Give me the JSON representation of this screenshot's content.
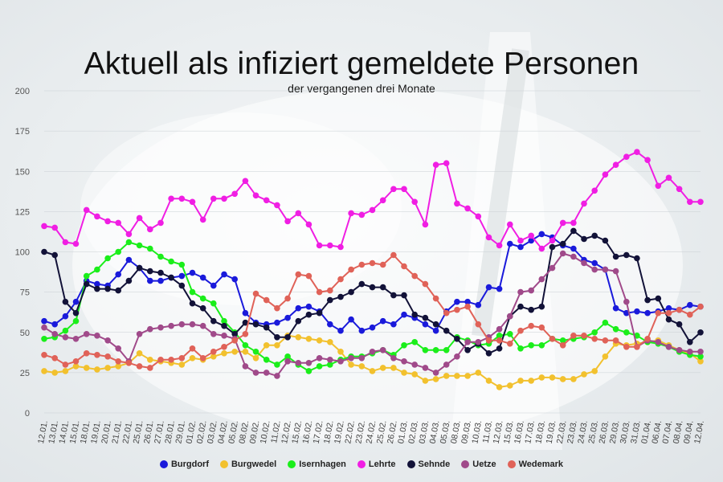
{
  "chart_data": {
    "type": "line",
    "title": "Aktuell als infiziert gemeldete Personen",
    "subtitle": "der vergangenen drei Monate",
    "xlabel": "",
    "ylabel": "",
    "ylim": [
      0,
      200
    ],
    "yticks": [
      0,
      25,
      50,
      75,
      100,
      125,
      150,
      175,
      200
    ],
    "grid": true,
    "legend_position": "bottom",
    "categories": [
      "12.01.",
      "13.01.",
      "14.01.",
      "15.01.",
      "18.01.",
      "19.01.",
      "20.01.",
      "21.01.",
      "22.01.",
      "25.01.",
      "26.01.",
      "27.01.",
      "28.01.",
      "29.01.",
      "01.02.",
      "02.02.",
      "03.02.",
      "04.02.",
      "05.02.",
      "08.02.",
      "09.02.",
      "10.02.",
      "11.02.",
      "12.02.",
      "15.02.",
      "16.02.",
      "17.02.",
      "18.02.",
      "19.02.",
      "22.02.",
      "23.02.",
      "24.02.",
      "25.02.",
      "26.02.",
      "01.03.",
      "02.03.",
      "03.03.",
      "04.03.",
      "05.03.",
      "08.03.",
      "09.03.",
      "10.03.",
      "11.03.",
      "12.03.",
      "15.03.",
      "16.03.",
      "17.03.",
      "18.03.",
      "19.03.",
      "22.03.",
      "23.03.",
      "24.03.",
      "25.03.",
      "26.03.",
      "29.03.",
      "30.03.",
      "31.03.",
      "01.04.",
      "06.04.",
      "07.04.",
      "08.04.",
      "09.04.",
      "12.04."
    ],
    "series": [
      {
        "name": "Burgdorf",
        "color": "#1a1adb",
        "values": [
          57,
          55,
          60,
          69,
          82,
          80,
          79,
          86,
          95,
          90,
          82,
          82,
          84,
          85,
          87,
          84,
          79,
          86,
          83,
          62,
          56,
          55,
          56,
          59,
          65,
          66,
          63,
          55,
          51,
          58,
          51,
          53,
          57,
          55,
          61,
          59,
          55,
          51,
          63,
          69,
          69,
          67,
          78,
          77,
          105,
          103,
          107,
          111,
          109,
          104,
          102,
          95,
          93,
          89,
          65,
          62,
          63,
          62,
          63,
          65,
          64,
          67,
          66
        ]
      },
      {
        "name": "Burgwedel",
        "color": "#f2c12e",
        "values": [
          26,
          25,
          26,
          29,
          28,
          27,
          28,
          29,
          31,
          37,
          33,
          32,
          31,
          30,
          34,
          33,
          35,
          37,
          38,
          38,
          34,
          42,
          42,
          48,
          47,
          46,
          45,
          44,
          38,
          30,
          29,
          26,
          28,
          28,
          25,
          24,
          20,
          21,
          23,
          23,
          23,
          25,
          20,
          16,
          17,
          20,
          20,
          22,
          22,
          21,
          21,
          24,
          26,
          35,
          43,
          42,
          43,
          44,
          45,
          42,
          39,
          37,
          32
        ]
      },
      {
        "name": "Isernhagen",
        "color": "#1aee1a",
        "values": [
          46,
          47,
          51,
          57,
          85,
          89,
          96,
          100,
          106,
          104,
          102,
          97,
          94,
          92,
          75,
          71,
          68,
          57,
          50,
          42,
          38,
          33,
          30,
          35,
          30,
          26,
          29,
          30,
          33,
          35,
          35,
          37,
          39,
          36,
          42,
          44,
          39,
          39,
          39,
          47,
          45,
          42,
          43,
          48,
          49,
          40,
          42,
          42,
          46,
          45,
          46,
          47,
          50,
          56,
          52,
          50,
          48,
          44,
          43,
          41,
          38,
          36,
          35
        ]
      },
      {
        "name": "Lehrte",
        "color": "#f01ee3",
        "values": [
          116,
          115,
          106,
          105,
          126,
          122,
          119,
          118,
          111,
          121,
          114,
          118,
          133,
          133,
          131,
          120,
          133,
          133,
          136,
          144,
          135,
          132,
          129,
          119,
          124,
          117,
          104,
          104,
          103,
          124,
          123,
          126,
          132,
          139,
          139,
          131,
          117,
          154,
          155,
          130,
          127,
          122,
          109,
          104,
          117,
          107,
          110,
          102,
          107,
          118,
          118,
          130,
          138,
          148,
          154,
          159,
          162,
          157,
          141,
          146,
          139,
          131,
          131
        ]
      },
      {
        "name": "Sehnde",
        "color": "#121238",
        "values": [
          100,
          98,
          69,
          62,
          80,
          77,
          77,
          76,
          82,
          90,
          88,
          87,
          84,
          79,
          68,
          65,
          57,
          54,
          49,
          56,
          55,
          53,
          47,
          47,
          57,
          61,
          62,
          70,
          72,
          75,
          80,
          78,
          78,
          73,
          73,
          61,
          59,
          55,
          51,
          46,
          39,
          43,
          37,
          40,
          60,
          66,
          64,
          66,
          103,
          105,
          113,
          108,
          110,
          107,
          97,
          98,
          96,
          70,
          71,
          58,
          55,
          44,
          50
        ]
      },
      {
        "name": "Uetze",
        "color": "#a04a8a",
        "values": [
          53,
          49,
          47,
          46,
          49,
          48,
          45,
          40,
          32,
          49,
          52,
          53,
          54,
          55,
          55,
          54,
          49,
          48,
          46,
          29,
          25,
          25,
          23,
          32,
          31,
          31,
          34,
          33,
          32,
          34,
          34,
          38,
          39,
          34,
          32,
          30,
          28,
          25,
          30,
          35,
          44,
          44,
          47,
          52,
          60,
          75,
          76,
          83,
          90,
          99,
          97,
          93,
          89,
          89,
          88,
          69,
          41,
          45,
          44,
          41,
          39,
          38,
          38
        ]
      },
      {
        "name": "Wedemark",
        "color": "#e06258",
        "values": [
          36,
          34,
          30,
          32,
          37,
          36,
          35,
          32,
          31,
          29,
          28,
          33,
          33,
          34,
          40,
          34,
          38,
          41,
          45,
          49,
          74,
          70,
          65,
          71,
          86,
          85,
          75,
          76,
          83,
          89,
          92,
          93,
          92,
          98,
          91,
          85,
          80,
          71,
          62,
          64,
          66,
          55,
          45,
          45,
          43,
          51,
          54,
          53,
          46,
          42,
          48,
          48,
          46,
          45,
          45,
          41,
          41,
          46,
          62,
          62,
          64,
          61,
          66
        ]
      }
    ]
  }
}
